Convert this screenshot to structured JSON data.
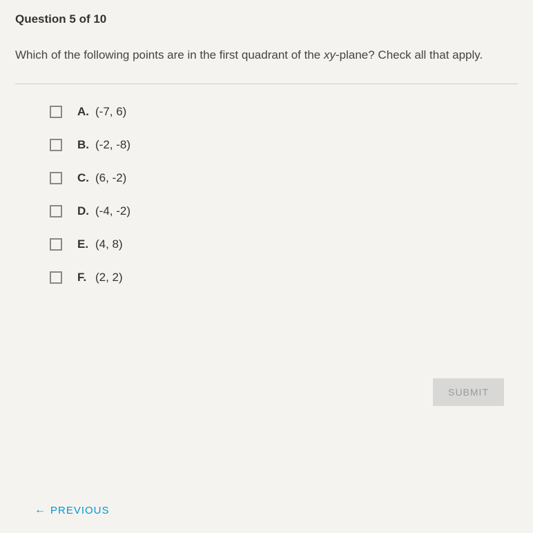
{
  "header": {
    "question_number": "Question 5 of 10"
  },
  "question": {
    "text_before_italic": "Which of the following points are in the first quadrant of the ",
    "italic_text": "xy",
    "text_after_italic": "-plane? Check all that apply."
  },
  "answers": [
    {
      "letter": "A.",
      "value": "(-7, 6)"
    },
    {
      "letter": "B.",
      "value": "(-2, -8)"
    },
    {
      "letter": "C.",
      "value": "(6, -2)"
    },
    {
      "letter": "D.",
      "value": "(-4, -2)"
    },
    {
      "letter": "E.",
      "value": "(4, 8)"
    },
    {
      "letter": "F.",
      "value": "(2, 2)"
    }
  ],
  "buttons": {
    "submit_label": "SUBMIT",
    "previous_label": "PREVIOUS"
  },
  "colors": {
    "background": "#f5f3f0",
    "text": "#3a3a3a",
    "accent": "#0099cc",
    "submit_bg": "#d8d8d6",
    "submit_text": "#9a9a98",
    "checkbox_border": "#888",
    "divider": "#ccc"
  }
}
